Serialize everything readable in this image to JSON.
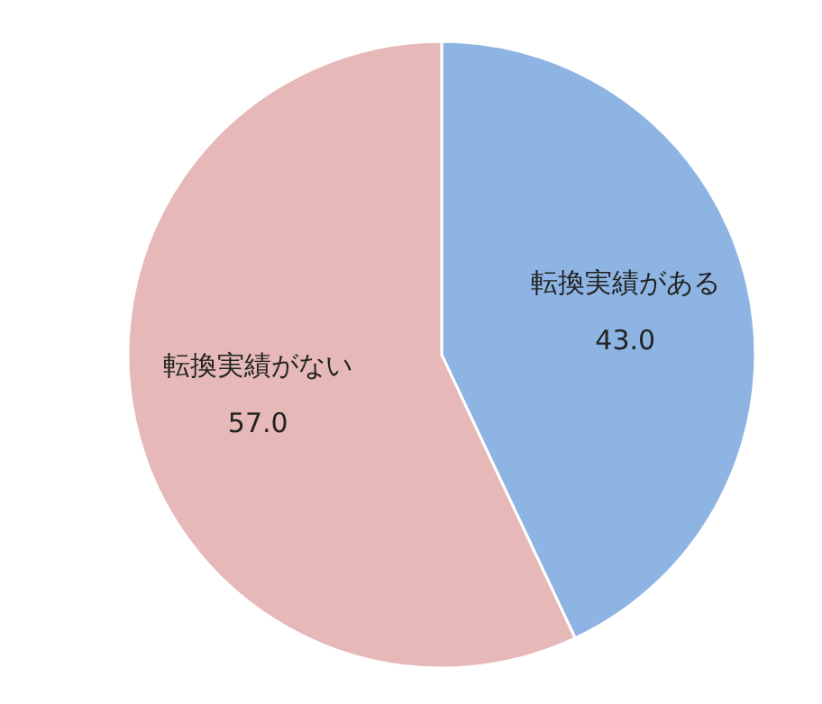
{
  "chart_data": {
    "type": "pie",
    "categories": [
      "転換実績がある",
      "転換実績がない"
    ],
    "values": [
      43.0,
      57.0
    ],
    "colors": [
      "#8db4e2",
      "#e6b9b8"
    ],
    "value_labels": [
      "43.0",
      "57.0"
    ]
  }
}
